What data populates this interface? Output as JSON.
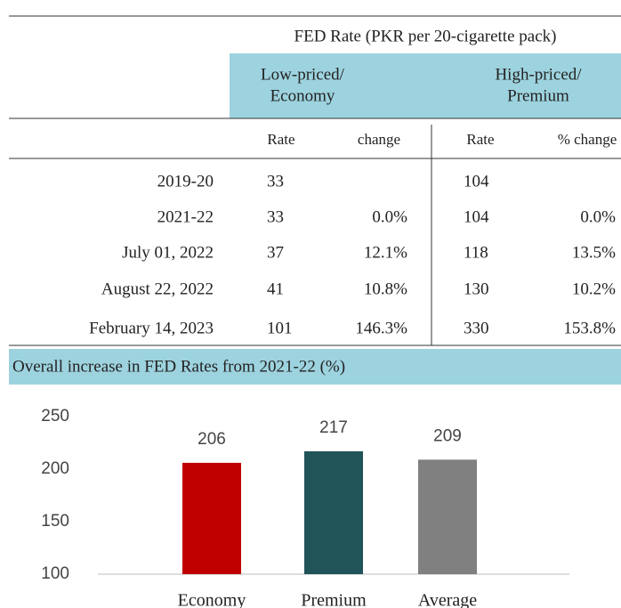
{
  "table": {
    "group_header": "FED Rate (PKR per 20-cigarette pack)",
    "subgroups": [
      [
        "Low-priced/",
        "Economy"
      ],
      [
        "High-priced/",
        "Premium"
      ]
    ],
    "columns": [
      "Rate",
      "change",
      "Rate",
      "% change"
    ],
    "rows": [
      [
        "2019-20",
        "33",
        null,
        "104",
        null
      ],
      [
        "2021-22",
        "33",
        "0.0%",
        "104",
        "0.0%"
      ],
      [
        "July 01, 2022",
        "37",
        "12.1%",
        "118",
        "13.5%"
      ],
      [
        "August 22, 2022",
        "41",
        "10.8%",
        "130",
        "10.2%"
      ],
      [
        "February 14, 2023",
        "101",
        "146.3%",
        "330",
        "153.8%"
      ]
    ]
  },
  "chart_data": {
    "type": "bar",
    "title": "Overall increase in FED Rates from 2021-22 (%)",
    "categories": [
      "Economy",
      "Premium",
      "Average"
    ],
    "values": [
      206,
      217,
      209
    ],
    "colors": [
      "#c00000",
      "#215459",
      "#808080"
    ],
    "ylim": [
      100,
      250
    ],
    "yticks": [
      100,
      150,
      200,
      250
    ],
    "grid": false
  }
}
